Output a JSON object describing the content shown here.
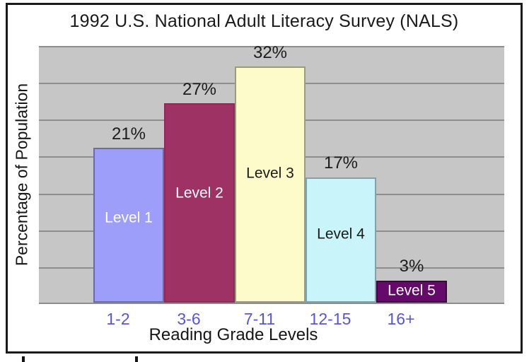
{
  "chart_data": {
    "type": "bar",
    "title": "1992 U.S. National Adult Literacy Survey (NALS)",
    "xlabel": "Reading Grade Levels",
    "ylabel": "Percentage of Population",
    "ylim": [
      0,
      35
    ],
    "grid_interval": 5,
    "grid": "horizontal",
    "legend": "none",
    "categories": [
      "1-2",
      "3-6",
      "7-11",
      "12-15",
      "16+"
    ],
    "series": [
      {
        "name": "Level 1",
        "value": 21,
        "value_label": "21%",
        "fill": "#9d9dfa",
        "border": "#6b6ba8",
        "label_color": "#ffffff"
      },
      {
        "name": "Level 2",
        "value": 27,
        "value_label": "27%",
        "fill": "#9e3264",
        "border": "#8a2b58",
        "label_color": "#ffffff"
      },
      {
        "name": "Level 3",
        "value": 32,
        "value_label": "32%",
        "fill": "#fdfbc9",
        "border": "#9b9b80",
        "label_color": "#1a1a1a"
      },
      {
        "name": "Level 4",
        "value": 17,
        "value_label": "17%",
        "fill": "#c9f4f9",
        "border": "#7fa3ab",
        "label_color": "#1a1a1a"
      },
      {
        "name": "Level 5",
        "value": 3,
        "value_label": "3%",
        "fill": "#650a6b",
        "border": "#3f0645",
        "label_color": "#ffffff"
      }
    ],
    "colors": {
      "plot_background": "#c6c6c6",
      "gridline": "#8e8e8e",
      "tick_label": "#5656d6",
      "text": "#1a1a1a",
      "frame_border": "#1b1b1b",
      "page_background": "#ffffff"
    }
  }
}
